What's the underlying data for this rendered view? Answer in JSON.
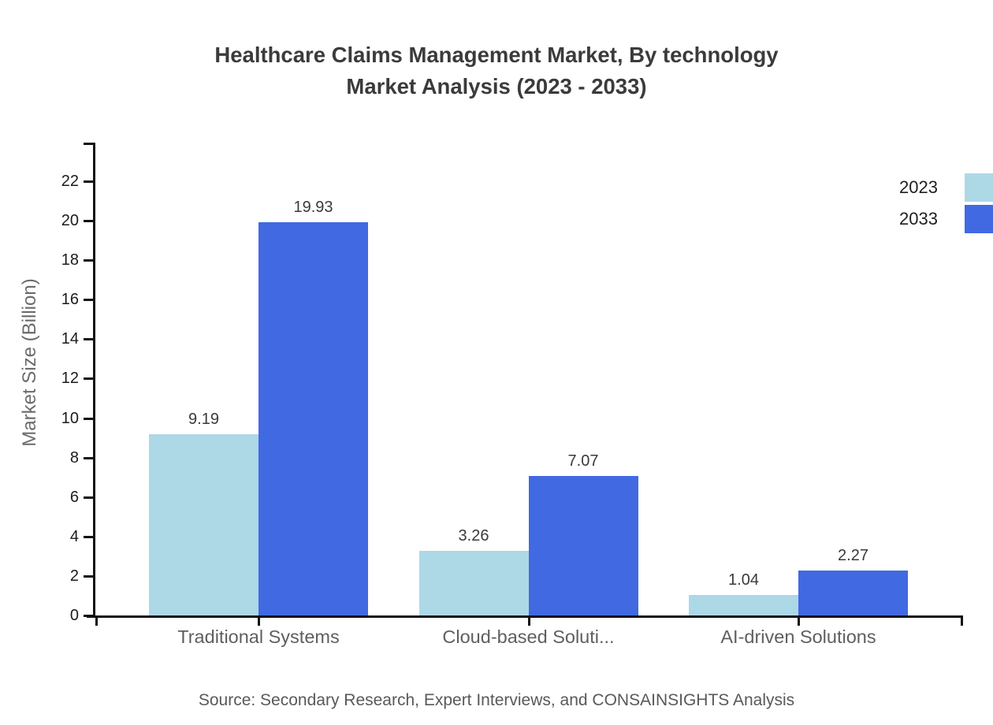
{
  "title": {
    "line1": "Healthcare Claims Management Market, By technology",
    "line2": "Market Analysis (2023 - 2033)"
  },
  "source_note": "Source: Secondary Research, Expert Interviews, and CONSAINSIGHTS Analysis",
  "colors": {
    "series_2023": "#ADD8E6",
    "series_2033": "#4169E1",
    "axis": "#111111",
    "corner_mark": "#4169E1"
  },
  "chart_data": {
    "type": "bar",
    "title": "Healthcare Claims Management Market, By technology",
    "subtitle": "Market Analysis (2023 - 2033)",
    "xlabel": "",
    "ylabel": "Market Size (Billion)",
    "categories": [
      "Traditional Systems",
      "Cloud-based Soluti...",
      "AI-driven Solutions"
    ],
    "series": [
      {
        "name": "2023",
        "color": "#ADD8E6",
        "values": [
          9.19,
          3.26,
          1.04
        ]
      },
      {
        "name": "2033",
        "color": "#4169E1",
        "values": [
          19.93,
          7.07,
          2.27
        ]
      }
    ],
    "ylim": [
      0,
      22
    ],
    "ytick_step": 2,
    "ytick_labels": [
      "0",
      "2",
      "4",
      "6",
      "8",
      "10",
      "12",
      "14",
      "16",
      "18",
      "20",
      "22"
    ],
    "value_label_format": "2dp",
    "legend_position": "top-right",
    "grid": false
  }
}
